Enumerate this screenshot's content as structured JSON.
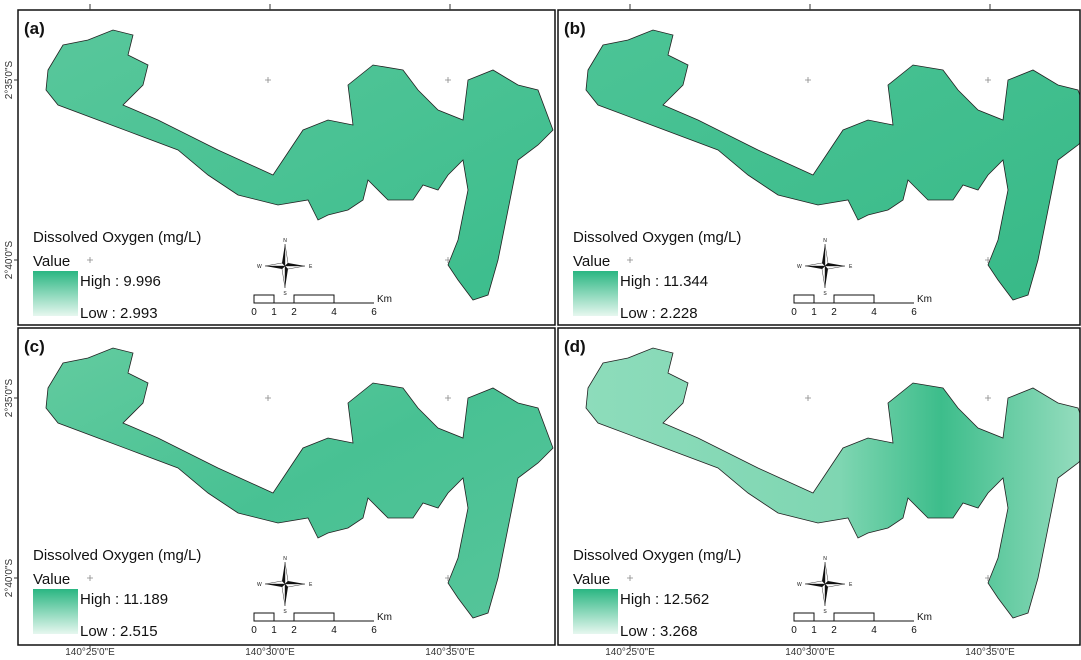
{
  "panels": [
    {
      "label": "(a)",
      "high": "High : 9.996",
      "low": "Low : 2.993"
    },
    {
      "label": "(b)",
      "high": "High : 11.344",
      "low": "Low : 2.228"
    },
    {
      "label": "(c)",
      "high": "High : 11.189",
      "low": "Low : 2.515"
    },
    {
      "label": "(d)",
      "high": "High : 12.562",
      "low": "Low : 3.268"
    }
  ],
  "legend_title": "Dissolved Oxygen (mg/L)",
  "legend_subtitle": "Value",
  "compass": {
    "n": "N",
    "s": "S",
    "e": "E",
    "w": "W"
  },
  "scale_bar": {
    "ticks": [
      0,
      1,
      2,
      4,
      6
    ],
    "unit": "Km"
  },
  "latitude_labels": [
    "2°35'0\"S",
    "2°40'0\"S"
  ],
  "longitude_labels": [
    "140°25'0\"E",
    "140°30'0\"E",
    "140°35'0\"E"
  ]
}
